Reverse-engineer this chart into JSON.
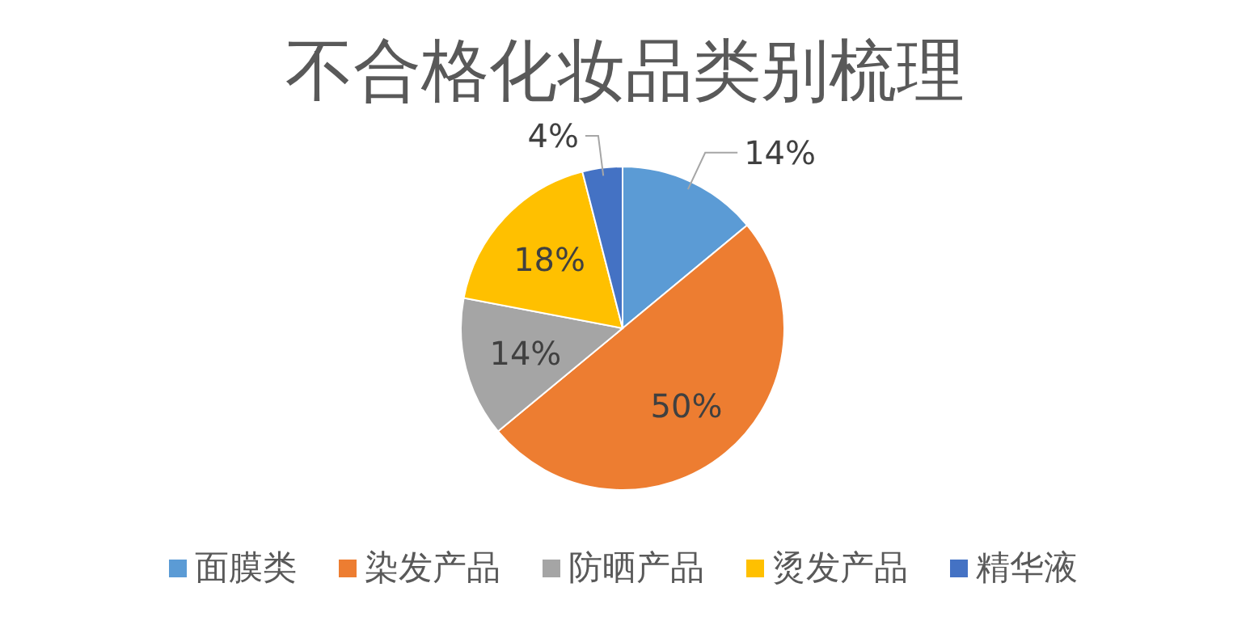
{
  "chart_data": {
    "type": "pie",
    "title": "不合格化妆品类别梳理",
    "categories": [
      "面膜类",
      "染发产品",
      "防晒产品",
      "烫发产品",
      "精华液"
    ],
    "values": [
      14,
      50,
      14,
      18,
      4
    ],
    "colors": [
      "#5b9bd5",
      "#ed7d31",
      "#a5a5a5",
      "#ffc000",
      "#4472c4"
    ],
    "value_labels": [
      "14%",
      "50%",
      "14%",
      "18%",
      "4%"
    ],
    "legend": "bottom"
  }
}
